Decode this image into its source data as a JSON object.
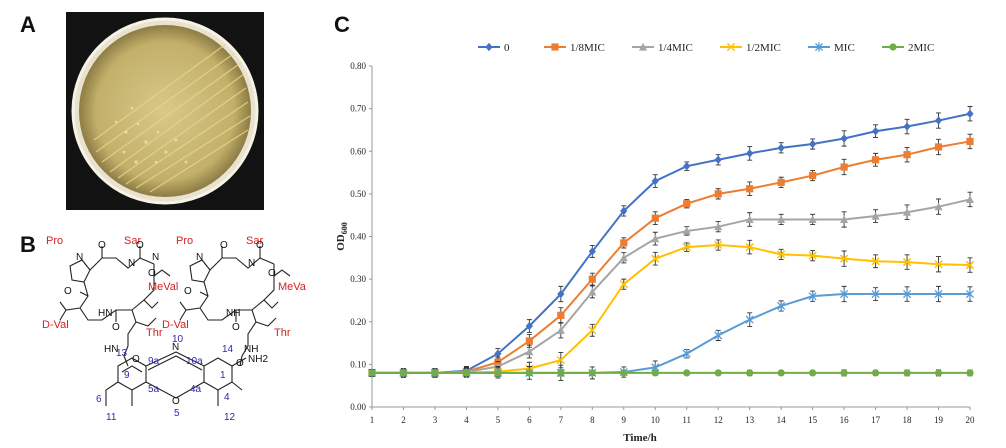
{
  "panels": {
    "a": "A",
    "b": "B",
    "c": "C"
  },
  "structure": {
    "residues_left": [
      "Pro",
      "Sar",
      "MeVal",
      "D-Val",
      "Thr"
    ],
    "residues_right": [
      "Pro",
      "Sar",
      "MeVa",
      "D-Val",
      "Thr"
    ],
    "groups": [
      "HN",
      "HN",
      "NH",
      "NH",
      "NH2"
    ],
    "atoms": [
      "O",
      "O",
      "O",
      "O",
      "O",
      "O",
      "O",
      "O",
      "O",
      "O",
      "O",
      "O",
      "O",
      "N",
      "N",
      "N",
      "N",
      "N",
      "N"
    ],
    "locants": [
      "13",
      "10",
      "14",
      "9a",
      "10a",
      "9",
      "1",
      "5a",
      "4a",
      "6",
      "5",
      "4",
      "11",
      "12"
    ]
  },
  "chart_data": {
    "type": "line",
    "title": "",
    "xlabel": "Time/h",
    "ylabel": "OD",
    "ylabel_sub": "600",
    "xlim": [
      1,
      20
    ],
    "ylim": [
      0,
      0.8
    ],
    "x": [
      1,
      2,
      3,
      4,
      5,
      6,
      7,
      8,
      9,
      10,
      11,
      12,
      13,
      14,
      15,
      16,
      17,
      18,
      19,
      20
    ],
    "y_ticks": [
      "0.00",
      "0.10",
      "0.20",
      "0.30",
      "0.40",
      "0.50",
      "0.60",
      "0.70",
      "0.80"
    ],
    "legend_position": "top",
    "series": [
      {
        "name": "0",
        "color": "#4472c4",
        "marker": "diamond",
        "values": [
          0.08,
          0.08,
          0.08,
          0.085,
          0.125,
          0.19,
          0.265,
          0.365,
          0.46,
          0.53,
          0.565,
          0.58,
          0.595,
          0.608,
          0.617,
          0.63,
          0.647,
          0.658,
          0.672,
          0.688
        ]
      },
      {
        "name": "1/8MIC",
        "color": "#ed7d31",
        "marker": "square",
        "values": [
          0.08,
          0.08,
          0.08,
          0.083,
          0.105,
          0.155,
          0.215,
          0.3,
          0.385,
          0.443,
          0.477,
          0.5,
          0.512,
          0.527,
          0.543,
          0.563,
          0.58,
          0.592,
          0.61,
          0.623
        ]
      },
      {
        "name": "1/4MIC",
        "color": "#a5a5a5",
        "marker": "triangle",
        "values": [
          0.08,
          0.08,
          0.08,
          0.082,
          0.095,
          0.13,
          0.18,
          0.27,
          0.35,
          0.395,
          0.413,
          0.423,
          0.44,
          0.44,
          0.44,
          0.44,
          0.448,
          0.457,
          0.47,
          0.487
        ]
      },
      {
        "name": "1/2MIC",
        "color": "#ffc000",
        "marker": "x",
        "values": [
          0.08,
          0.08,
          0.08,
          0.08,
          0.083,
          0.09,
          0.11,
          0.18,
          0.288,
          0.348,
          0.375,
          0.38,
          0.375,
          0.358,
          0.355,
          0.348,
          0.342,
          0.34,
          0.335,
          0.333
        ]
      },
      {
        "name": "MIC",
        "color": "#5b9bd5",
        "marker": "star",
        "values": [
          0.08,
          0.08,
          0.08,
          0.08,
          0.08,
          0.08,
          0.08,
          0.08,
          0.082,
          0.093,
          0.125,
          0.168,
          0.205,
          0.237,
          0.26,
          0.265,
          0.265,
          0.265,
          0.265,
          0.265
        ]
      },
      {
        "name": "2MIC",
        "color": "#70ad47",
        "marker": "circle",
        "values": [
          0.08,
          0.08,
          0.08,
          0.08,
          0.08,
          0.08,
          0.08,
          0.08,
          0.08,
          0.08,
          0.08,
          0.08,
          0.08,
          0.08,
          0.08,
          0.08,
          0.08,
          0.08,
          0.08,
          0.08
        ]
      }
    ],
    "error": [
      0.008,
      0.01,
      0.01,
      0.01,
      0.012,
      0.015,
      0.018,
      0.014,
      0.012,
      0.015,
      0.01,
      0.012,
      0.016,
      0.012,
      0.012,
      0.018,
      0.015,
      0.017,
      0.018,
      0.017
    ]
  }
}
